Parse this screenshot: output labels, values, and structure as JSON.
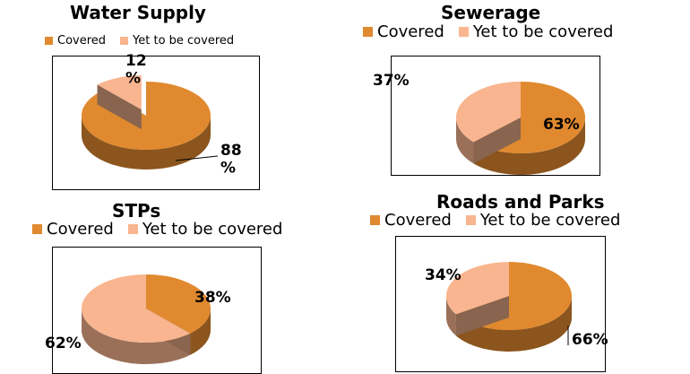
{
  "colors": {
    "covered": "#e0892f",
    "yet": "#f9b58f"
  },
  "legend": {
    "covered": "Covered",
    "yet": "Yet to be covered"
  },
  "chart_data": [
    {
      "type": "pie",
      "title": "Water Supply",
      "categories": [
        "Covered",
        "Yet to be covered"
      ],
      "values": [
        88,
        12
      ],
      "labels": [
        "88\n%",
        "12\n%"
      ]
    },
    {
      "type": "pie",
      "title": "Sewerage",
      "categories": [
        "Covered",
        "Yet to be covered"
      ],
      "values": [
        63,
        37
      ],
      "labels": [
        "63%",
        "37%"
      ]
    },
    {
      "type": "pie",
      "title": "STPs",
      "categories": [
        "Covered",
        "Yet to be covered"
      ],
      "values": [
        38,
        62
      ],
      "labels": [
        "38%",
        "62%"
      ]
    },
    {
      "type": "pie",
      "title": "Roads and Parks",
      "categories": [
        "Covered",
        "Yet to be covered"
      ],
      "values": [
        66,
        34
      ],
      "labels": [
        "66%",
        "34%"
      ]
    }
  ]
}
